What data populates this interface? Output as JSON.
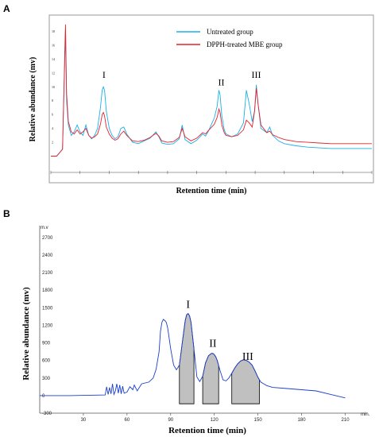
{
  "panels": {
    "a_label": "A",
    "b_label": "B"
  },
  "chart_data": [
    {
      "type": "line",
      "panel": "A",
      "xlabel": "Retention time (min)",
      "ylabel": "Relative abundance (mv)",
      "xlim": [
        0,
        55
      ],
      "ylim": [
        -2,
        20
      ],
      "yticks": [
        "18",
        "16",
        "14",
        "12",
        "10",
        "8",
        "6",
        "4",
        "2"
      ],
      "legend_position": "top-right",
      "peak_labels": [
        {
          "label": "I",
          "x": 9.1,
          "y": 11.3
        },
        {
          "label": "II",
          "x": 29.2,
          "y": 10.2
        },
        {
          "label": "III",
          "x": 35.2,
          "y": 11.3
        }
      ],
      "series": [
        {
          "name": "Untreated group",
          "color": "#1ab0e8",
          "x": [
            0,
            1,
            2,
            2.5,
            2.7,
            3,
            3.5,
            4,
            4.5,
            5,
            5.5,
            6,
            6.5,
            7,
            7.5,
            8,
            8.5,
            8.8,
            9,
            9.2,
            9.5,
            10,
            10.5,
            11,
            11.5,
            12,
            12.5,
            13,
            14,
            15,
            16,
            17,
            18,
            18.5,
            19,
            20,
            21,
            22,
            22.5,
            23,
            24,
            25,
            26,
            26.5,
            27,
            28,
            28.5,
            28.8,
            29,
            29.3,
            29.7,
            30,
            31,
            32,
            33,
            33.5,
            34,
            34.5,
            34.9,
            35.2,
            35.5,
            36,
            37,
            37.5,
            38,
            39,
            40,
            42,
            44,
            46,
            48,
            50,
            52,
            55
          ],
          "y": [
            0,
            0,
            1,
            18,
            8,
            4.5,
            3,
            3.5,
            4.5,
            3.5,
            3,
            4.5,
            3,
            2.5,
            3,
            4,
            7,
            9.5,
            10,
            9.5,
            6.5,
            4,
            3,
            2.5,
            2.8,
            4,
            4.2,
            3.2,
            2,
            1.8,
            2.2,
            2.6,
            3.5,
            2.8,
            1.9,
            1.7,
            1.8,
            2.5,
            4.5,
            2.4,
            1.8,
            2.3,
            3.2,
            2.9,
            3.6,
            5.5,
            7.2,
            9.5,
            8.8,
            5.8,
            3.8,
            3.2,
            2.8,
            3.2,
            4.8,
            9.5,
            7.5,
            5,
            6.5,
            10.3,
            7.5,
            4,
            3.4,
            4.2,
            3,
            2.2,
            1.8,
            1.5,
            1.3,
            1.2,
            1.1,
            1.1,
            1.1,
            1.1
          ]
        },
        {
          "name": "DPPH-treated MBE group",
          "color": "#e8202a",
          "x": [
            0,
            1,
            2,
            2.5,
            2.7,
            3,
            3.5,
            4,
            4.5,
            5,
            5.5,
            6,
            6.5,
            7,
            7.5,
            8,
            8.5,
            8.8,
            9,
            9.2,
            9.5,
            10,
            10.5,
            11,
            11.5,
            12,
            12.5,
            13,
            14,
            15,
            16,
            17,
            18,
            18.5,
            19,
            20,
            21,
            22,
            22.5,
            23,
            24,
            25,
            26,
            26.5,
            27,
            28,
            28.5,
            28.8,
            29,
            29.3,
            29.7,
            30,
            31,
            32,
            33,
            33.5,
            34,
            34.5,
            34.9,
            35.2,
            35.5,
            36,
            37,
            37.5,
            38,
            39,
            40,
            42,
            44,
            46,
            48,
            50,
            52,
            55
          ],
          "y": [
            0,
            0,
            1,
            19,
            9,
            5,
            3.5,
            3.2,
            3.8,
            3.2,
            3.5,
            4,
            3,
            2.6,
            2.8,
            3.2,
            4.6,
            6,
            6.3,
            5.8,
            4.2,
            3.2,
            2.6,
            2.3,
            2.5,
            3.2,
            3.6,
            3,
            2.2,
            2.1,
            2.3,
            2.7,
            3.3,
            2.9,
            2.2,
            2,
            2.1,
            2.7,
            4,
            2.8,
            2.2,
            2.6,
            3.4,
            3.2,
            3.7,
            4.6,
            5.6,
            6.8,
            6.3,
            4.5,
            3.4,
            3,
            2.8,
            3,
            3.8,
            5.2,
            4.8,
            4.2,
            6.5,
            9.8,
            7.5,
            4.5,
            3.4,
            3.6,
            3.1,
            2.7,
            2.4,
            2.1,
            2,
            1.9,
            1.8,
            1.8,
            1.8,
            1.8
          ]
        }
      ]
    },
    {
      "type": "area",
      "panel": "B",
      "xlabel": "Retention time (min)",
      "ylabel": "Relative abundance (mv)",
      "xlim": [
        0,
        225
      ],
      "ylim": [
        -300,
        2900
      ],
      "xticks": [
        30,
        60,
        90,
        120,
        150,
        180,
        210
      ],
      "yticks": [
        2700,
        2400,
        2100,
        1800,
        1500,
        1200,
        900,
        600,
        300,
        -300
      ],
      "ytick_zero_label": "0",
      "y_unit_label": "m.v",
      "x_unit_label": "min.",
      "peak_labels": [
        {
          "label": "I",
          "x": 102,
          "y": 1500
        },
        {
          "label": "II",
          "x": 119,
          "y": 830
        },
        {
          "label": "III",
          "x": 143,
          "y": 610
        }
      ],
      "fractions": [
        {
          "label": "I",
          "x_start": 96,
          "x_end": 106,
          "fill": "#c0c0c0"
        },
        {
          "label": "II",
          "x_start": 112,
          "x_end": 123,
          "fill": "#c0c0c0"
        },
        {
          "label": "III",
          "x_start": 132,
          "x_end": 151,
          "fill": "#c0c0c0"
        }
      ],
      "baseline_y": -140,
      "series": [
        {
          "name": "",
          "color": "#1a3fcc",
          "x": [
            0,
            20,
            45,
            46,
            47,
            48,
            49,
            50,
            51,
            52,
            53,
            54,
            55,
            56,
            57,
            58,
            60,
            62,
            64,
            65,
            67,
            70,
            75,
            78,
            80,
            82,
            83,
            84,
            85,
            86,
            87,
            88,
            90,
            92,
            94,
            96,
            98,
            100,
            101,
            102,
            103,
            104,
            106,
            108,
            110,
            112,
            114,
            116,
            118,
            119,
            120,
            121,
            122,
            124,
            126,
            128,
            130,
            132,
            134,
            136,
            138,
            140,
            142,
            144,
            146,
            148,
            150,
            152,
            154,
            156,
            160,
            170,
            180,
            190,
            200,
            210
          ],
          "y": [
            0,
            0,
            10,
            150,
            20,
            140,
            30,
            200,
            20,
            80,
            200,
            40,
            180,
            30,
            160,
            40,
            60,
            150,
            100,
            180,
            80,
            200,
            230,
            300,
            450,
            750,
            1100,
            1250,
            1300,
            1280,
            1250,
            1150,
            800,
            520,
            440,
            520,
            900,
            1280,
            1380,
            1400,
            1360,
            1250,
            800,
            320,
            240,
            330,
            560,
            680,
            720,
            720,
            700,
            660,
            600,
            420,
            270,
            250,
            300,
            380,
            470,
            540,
            590,
            610,
            600,
            570,
            520,
            420,
            310,
            230,
            200,
            170,
            140,
            120,
            100,
            80,
            20,
            -40
          ]
        }
      ]
    }
  ]
}
